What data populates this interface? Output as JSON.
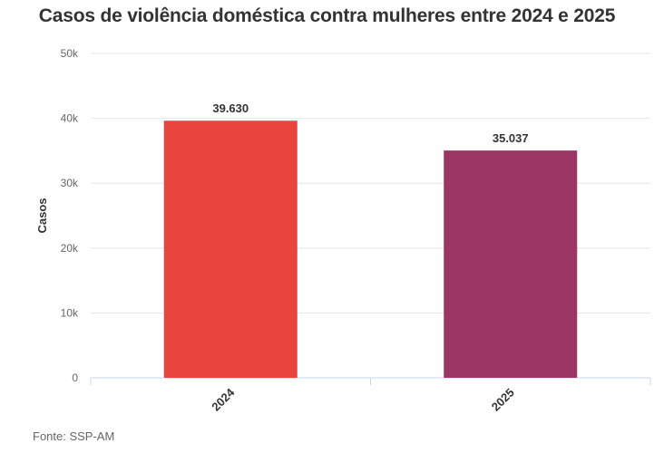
{
  "chart_data": {
    "type": "bar",
    "title": "Casos de violência doméstica contra mulheres entre 2024 e 2025",
    "categories": [
      "2024",
      "2025"
    ],
    "values": [
      39630,
      35037
    ],
    "data_labels": [
      "39.630",
      "35.037"
    ],
    "colors": [
      "#e8453c",
      "#9b3665"
    ],
    "xlabel": "",
    "ylabel": "Casos",
    "ylim": [
      0,
      50000
    ],
    "y_ticks": [
      0,
      10000,
      20000,
      30000,
      40000,
      50000
    ],
    "y_tick_labels": [
      "0",
      "10k",
      "20k",
      "30k",
      "40k",
      "50k"
    ],
    "grid": true,
    "source": "Fonte: SSP-AM"
  }
}
